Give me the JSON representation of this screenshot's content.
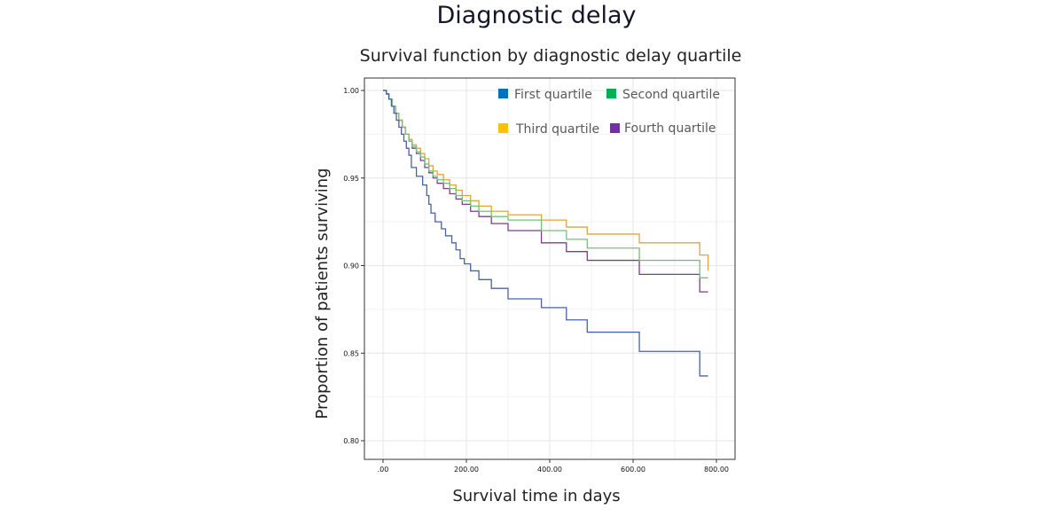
{
  "figure_title": "Diagnostic delay",
  "chart_data": {
    "type": "line",
    "title": "Survival function by diagnostic delay quartile",
    "xlabel": "Survival time in days",
    "ylabel": "Proportion of patients surviving",
    "xlim": [
      -20,
      850
    ],
    "ylim": [
      0.795,
      1.005
    ],
    "x_ticks": [
      0,
      200,
      400,
      600,
      800
    ],
    "x_tick_labels": [
      ".00",
      "200.00",
      "400.00",
      "600.00",
      "800.00"
    ],
    "y_ticks": [
      0.8,
      0.85,
      0.9,
      0.95,
      1.0
    ],
    "y_tick_labels": [
      "0.80",
      "0.85",
      "0.90",
      "0.95",
      "1.00"
    ],
    "grid": true,
    "legend_position": "top-right",
    "series": [
      {
        "name": "First quartile",
        "color": "#0070c0",
        "line_color": "#4a62a6",
        "step_x": [
          0,
          8,
          14,
          20,
          26,
          32,
          38,
          44,
          50,
          56,
          62,
          68,
          80,
          95,
          105,
          110,
          115,
          125,
          140,
          150,
          165,
          175,
          185,
          195,
          210,
          230,
          260,
          300,
          380,
          440,
          490,
          615,
          760,
          780
        ],
        "step_y": [
          1.0,
          0.998,
          0.995,
          0.991,
          0.987,
          0.983,
          0.979,
          0.975,
          0.971,
          0.967,
          0.963,
          0.956,
          0.951,
          0.946,
          0.94,
          0.935,
          0.93,
          0.925,
          0.921,
          0.917,
          0.913,
          0.909,
          0.904,
          0.901,
          0.897,
          0.892,
          0.887,
          0.881,
          0.876,
          0.869,
          0.862,
          0.851,
          0.837,
          0.837
        ]
      },
      {
        "name": "Second quartile",
        "color": "#00b050",
        "line_color": "#74c27a",
        "step_x": [
          0,
          8,
          14,
          22,
          30,
          38,
          46,
          54,
          62,
          70,
          80,
          90,
          100,
          110,
          120,
          130,
          145,
          160,
          175,
          190,
          210,
          230,
          260,
          300,
          380,
          440,
          490,
          615,
          760,
          780
        ],
        "step_y": [
          1.0,
          0.998,
          0.995,
          0.991,
          0.987,
          0.983,
          0.979,
          0.975,
          0.971,
          0.968,
          0.965,
          0.962,
          0.958,
          0.954,
          0.951,
          0.949,
          0.947,
          0.944,
          0.94,
          0.937,
          0.934,
          0.931,
          0.928,
          0.926,
          0.92,
          0.915,
          0.91,
          0.903,
          0.893,
          0.893
        ]
      },
      {
        "name": "Third quartile",
        "color": "#ffc000",
        "line_color": "#e0a43e",
        "step_x": [
          0,
          8,
          14,
          22,
          30,
          38,
          46,
          54,
          62,
          70,
          80,
          90,
          100,
          110,
          120,
          130,
          145,
          160,
          175,
          190,
          210,
          230,
          260,
          300,
          380,
          440,
          490,
          615,
          760,
          780
        ],
        "step_y": [
          1.0,
          0.998,
          0.995,
          0.991,
          0.987,
          0.983,
          0.979,
          0.975,
          0.972,
          0.969,
          0.967,
          0.964,
          0.961,
          0.957,
          0.954,
          0.952,
          0.949,
          0.946,
          0.943,
          0.94,
          0.937,
          0.934,
          0.931,
          0.929,
          0.926,
          0.922,
          0.918,
          0.913,
          0.906,
          0.897
        ]
      },
      {
        "name": "Fourth quartile",
        "color": "#7030a0",
        "line_color": "#7b3f8f",
        "step_x": [
          0,
          8,
          14,
          22,
          30,
          38,
          46,
          54,
          62,
          70,
          80,
          90,
          100,
          110,
          120,
          130,
          145,
          160,
          175,
          190,
          210,
          230,
          260,
          300,
          380,
          440,
          490,
          615,
          760,
          780
        ],
        "step_y": [
          1.0,
          0.998,
          0.995,
          0.991,
          0.987,
          0.983,
          0.979,
          0.975,
          0.971,
          0.967,
          0.964,
          0.96,
          0.956,
          0.953,
          0.95,
          0.947,
          0.944,
          0.941,
          0.938,
          0.935,
          0.931,
          0.928,
          0.924,
          0.92,
          0.913,
          0.908,
          0.903,
          0.895,
          0.885,
          0.885
        ]
      }
    ]
  }
}
